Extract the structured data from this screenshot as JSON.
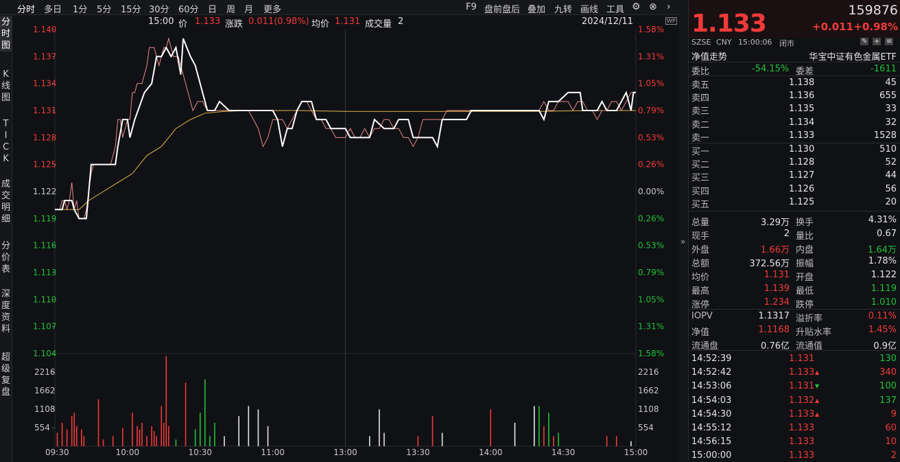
{
  "toolbar": {
    "periods": [
      "分时",
      "多日",
      "1分",
      "5分",
      "15分",
      "30分",
      "60分",
      "日",
      "周",
      "月",
      "更多"
    ],
    "right": [
      "F9",
      "盘前盘后",
      "叠加",
      "九转",
      "画线",
      "工具"
    ],
    "icons": [
      "gear-icon",
      "close-icon",
      "chevron-right-icon"
    ]
  },
  "left_tabs": [
    "分\n时\n图",
    "K\n线\n图",
    "T\nI\nC\nK",
    "成\n交\n明\n细",
    "分\n价\n表",
    "深\n度\n资\n料",
    "超\n级\n复\n盘"
  ],
  "infobar": {
    "time": "15:00",
    "price_label": "价",
    "price": "1.133",
    "change_label": "涨跌",
    "change": "0.011(0.98%)",
    "avg_label": "均价",
    "avg": "1.131",
    "vol_label": "成交量",
    "vol": "2",
    "date": "2024/12/11",
    "wp_label": "WP"
  },
  "chart_data": {
    "type": "line",
    "price_axis": {
      "ticks": [
        "1.140",
        "1.137",
        "1.134",
        "1.131",
        "1.128",
        "1.125",
        "1.122",
        "1.119",
        "1.116",
        "1.113",
        "1.110",
        "1.107",
        "1.104"
      ],
      "pct": [
        "1.58%",
        "1.31%",
        "1.05%",
        "0.79%",
        "0.53%",
        "0.26%",
        "0.00%",
        "0.26%",
        "0.53%",
        "0.79%",
        "1.05%",
        "1.31%",
        "1.58%"
      ],
      "pct_sign": [
        "up",
        "up",
        "up",
        "up",
        "up",
        "up",
        "zero",
        "down",
        "down",
        "down",
        "down",
        "down",
        "down"
      ],
      "ylim": [
        1.104,
        1.14
      ]
    },
    "volume_axis": {
      "ticks": [
        "2216",
        "1662",
        "1108",
        "554"
      ],
      "ylim": [
        0,
        2770
      ]
    },
    "time_ticks": [
      "09:30",
      "10:00",
      "10:30",
      "11:00",
      "13:00",
      "13:30",
      "14:00",
      "14:30",
      "15:00"
    ],
    "price_series": [
      [
        0,
        1.12
      ],
      [
        2,
        1.12
      ],
      [
        3,
        1.121
      ],
      [
        4,
        1.121
      ],
      [
        5,
        1.12
      ],
      [
        6,
        1.121
      ],
      [
        7,
        1.123
      ],
      [
        8,
        1.12
      ],
      [
        9,
        1.121
      ],
      [
        10,
        1.119
      ],
      [
        11,
        1.119
      ],
      [
        12,
        1.119
      ],
      [
        13,
        1.12
      ],
      [
        14,
        1.122
      ],
      [
        15,
        1.124
      ],
      [
        16,
        1.125
      ],
      [
        17,
        1.125
      ],
      [
        18,
        1.125
      ],
      [
        19,
        1.125
      ],
      [
        20,
        1.125
      ],
      [
        21,
        1.125
      ],
      [
        22,
        1.125
      ],
      [
        23,
        1.125
      ],
      [
        24,
        1.126
      ],
      [
        25,
        1.127
      ],
      [
        26,
        1.13
      ],
      [
        27,
        1.13
      ],
      [
        28,
        1.128
      ],
      [
        29,
        1.129
      ],
      [
        30,
        1.13
      ],
      [
        31,
        1.13
      ],
      [
        32,
        1.133
      ],
      [
        33,
        1.133
      ],
      [
        34,
        1.134
      ],
      [
        35,
        1.134
      ],
      [
        36,
        1.134
      ],
      [
        37,
        1.135
      ],
      [
        38,
        1.136
      ],
      [
        39,
        1.138
      ],
      [
        40,
        1.138
      ],
      [
        41,
        1.138
      ],
      [
        42,
        1.137
      ],
      [
        43,
        1.136
      ],
      [
        44,
        1.137
      ],
      [
        45,
        1.138
      ],
      [
        46,
        1.138
      ],
      [
        47,
        1.139
      ],
      [
        48,
        1.138
      ],
      [
        49,
        1.137
      ],
      [
        50,
        1.137
      ],
      [
        51,
        1.137
      ],
      [
        52,
        1.136
      ],
      [
        53,
        1.135
      ],
      [
        55,
        1.133
      ],
      [
        57,
        1.131
      ],
      [
        59,
        1.132
      ],
      [
        61,
        1.132
      ],
      [
        63,
        1.131
      ],
      [
        65,
        1.131
      ],
      [
        68,
        1.131
      ],
      [
        71,
        1.131
      ],
      [
        74,
        1.131
      ],
      [
        77,
        1.131
      ],
      [
        80,
        1.131
      ],
      [
        82,
        1.13
      ],
      [
        84,
        1.129
      ],
      [
        86,
        1.127
      ],
      [
        88,
        1.128
      ],
      [
        90,
        1.13
      ],
      [
        92,
        1.13
      ],
      [
        94,
        1.13
      ],
      [
        96,
        1.129
      ],
      [
        98,
        1.13
      ],
      [
        100,
        1.131
      ],
      [
        102,
        1.132
      ],
      [
        104,
        1.132
      ],
      [
        106,
        1.131
      ],
      [
        108,
        1.13
      ],
      [
        110,
        1.13
      ],
      [
        112,
        1.129
      ],
      [
        114,
        1.129
      ],
      [
        116,
        1.128
      ],
      [
        118,
        1.128
      ],
      [
        120,
        1.128
      ],
      [
        122,
        1.129
      ],
      [
        124,
        1.128
      ],
      [
        126,
        1.128
      ],
      [
        128,
        1.129
      ],
      [
        130,
        1.128
      ],
      [
        132,
        1.129
      ],
      [
        134,
        1.129
      ],
      [
        136,
        1.13
      ],
      [
        138,
        1.13
      ],
      [
        140,
        1.129
      ],
      [
        142,
        1.129
      ],
      [
        144,
        1.128
      ],
      [
        146,
        1.128
      ],
      [
        148,
        1.127
      ],
      [
        150,
        1.128
      ],
      [
        152,
        1.13
      ],
      [
        154,
        1.13
      ],
      [
        156,
        1.13
      ],
      [
        158,
        1.13
      ],
      [
        160,
        1.13
      ],
      [
        162,
        1.131
      ],
      [
        165,
        1.131
      ],
      [
        168,
        1.131
      ],
      [
        171,
        1.131
      ],
      [
        174,
        1.131
      ],
      [
        177,
        1.131
      ],
      [
        180,
        1.131
      ],
      [
        183,
        1.131
      ],
      [
        186,
        1.131
      ],
      [
        189,
        1.131
      ],
      [
        192,
        1.131
      ],
      [
        195,
        1.131
      ],
      [
        198,
        1.131
      ],
      [
        200,
        1.131
      ],
      [
        202,
        1.132
      ],
      [
        204,
        1.131
      ],
      [
        206,
        1.131
      ],
      [
        208,
        1.132
      ],
      [
        210,
        1.132
      ],
      [
        212,
        1.132
      ],
      [
        214,
        1.131
      ],
      [
        216,
        1.132
      ],
      [
        218,
        1.132
      ],
      [
        220,
        1.131
      ],
      [
        222,
        1.131
      ],
      [
        224,
        1.13
      ],
      [
        226,
        1.131
      ],
      [
        228,
        1.131
      ],
      [
        230,
        1.132
      ],
      [
        232,
        1.132
      ],
      [
        234,
        1.131
      ],
      [
        236,
        1.132
      ],
      [
        238,
        1.133
      ],
      [
        240,
        1.133
      ]
    ],
    "avg_series": [
      [
        0,
        1.12
      ],
      [
        5,
        1.12
      ],
      [
        10,
        1.12
      ],
      [
        14,
        1.121
      ],
      [
        20,
        1.122
      ],
      [
        26,
        1.123
      ],
      [
        32,
        1.124
      ],
      [
        38,
        1.126
      ],
      [
        44,
        1.127
      ],
      [
        50,
        1.129
      ],
      [
        56,
        1.13
      ],
      [
        62,
        1.1307
      ],
      [
        70,
        1.1309
      ],
      [
        80,
        1.131
      ],
      [
        100,
        1.131
      ],
      [
        120,
        1.1309
      ],
      [
        140,
        1.1309
      ],
      [
        160,
        1.1309
      ],
      [
        180,
        1.1309
      ],
      [
        200,
        1.1309
      ],
      [
        220,
        1.131
      ],
      [
        240,
        1.131
      ]
    ],
    "white_line": [
      [
        0,
        1.12
      ],
      [
        3,
        1.12
      ],
      [
        4,
        1.121
      ],
      [
        7,
        1.121
      ],
      [
        8,
        1.12
      ],
      [
        10,
        1.119
      ],
      [
        13,
        1.119
      ],
      [
        14,
        1.122
      ],
      [
        15,
        1.125
      ],
      [
        25,
        1.125
      ],
      [
        26,
        1.127
      ],
      [
        28,
        1.13
      ],
      [
        30,
        1.13
      ],
      [
        31,
        1.128
      ],
      [
        33,
        1.13
      ],
      [
        37,
        1.133
      ],
      [
        40,
        1.134
      ],
      [
        42,
        1.137
      ],
      [
        44,
        1.137
      ],
      [
        46,
        1.138
      ],
      [
        48,
        1.137
      ],
      [
        50,
        1.138
      ],
      [
        52,
        1.135
      ],
      [
        53,
        1.139
      ],
      [
        56,
        1.137
      ],
      [
        58,
        1.136
      ],
      [
        60,
        1.134
      ],
      [
        63,
        1.131
      ],
      [
        66,
        1.131
      ],
      [
        68,
        1.132
      ],
      [
        72,
        1.131
      ],
      [
        90,
        1.131
      ],
      [
        92,
        1.13
      ],
      [
        94,
        1.127
      ],
      [
        96,
        1.129
      ],
      [
        98,
        1.129
      ],
      [
        100,
        1.131
      ],
      [
        102,
        1.132
      ],
      [
        106,
        1.132
      ],
      [
        108,
        1.13
      ],
      [
        112,
        1.13
      ],
      [
        114,
        1.129
      ],
      [
        120,
        1.129
      ],
      [
        122,
        1.128
      ],
      [
        130,
        1.128
      ],
      [
        132,
        1.13
      ],
      [
        136,
        1.129
      ],
      [
        140,
        1.129
      ],
      [
        142,
        1.13
      ],
      [
        146,
        1.13
      ],
      [
        148,
        1.128
      ],
      [
        156,
        1.128
      ],
      [
        158,
        1.127
      ],
      [
        160,
        1.13
      ],
      [
        162,
        1.13
      ],
      [
        166,
        1.13
      ],
      [
        170,
        1.13
      ],
      [
        172,
        1.131
      ],
      [
        200,
        1.131
      ],
      [
        202,
        1.13
      ],
      [
        204,
        1.132
      ],
      [
        208,
        1.132
      ],
      [
        212,
        1.133
      ],
      [
        217,
        1.133
      ],
      [
        218,
        1.131
      ],
      [
        224,
        1.131
      ],
      [
        226,
        1.132
      ],
      [
        228,
        1.131
      ],
      [
        232,
        1.131
      ],
      [
        234,
        1.132
      ],
      [
        236,
        1.133
      ],
      [
        238,
        1.131
      ],
      [
        239,
        1.133
      ],
      [
        240,
        1.133
      ]
    ],
    "volume": [
      [
        1,
        400,
        "r"
      ],
      [
        3,
        700,
        "r"
      ],
      [
        5,
        500,
        "r"
      ],
      [
        7,
        900,
        "r"
      ],
      [
        8,
        1000,
        "r"
      ],
      [
        9,
        600,
        "r"
      ],
      [
        11,
        500,
        "r"
      ],
      [
        12,
        300,
        "r"
      ],
      [
        18,
        1400,
        "r"
      ],
      [
        20,
        200,
        "r"
      ],
      [
        24,
        300,
        "r"
      ],
      [
        28,
        550,
        "r"
      ],
      [
        32,
        1000,
        "r"
      ],
      [
        34,
        600,
        "r"
      ],
      [
        35,
        500,
        "r"
      ],
      [
        36,
        700,
        "r"
      ],
      [
        38,
        300,
        "r"
      ],
      [
        40,
        600,
        "r"
      ],
      [
        41,
        450,
        "r"
      ],
      [
        42,
        300,
        "r"
      ],
      [
        44,
        1200,
        "r"
      ],
      [
        45,
        700,
        "r"
      ],
      [
        46,
        2700,
        "r"
      ],
      [
        47,
        600,
        "r"
      ],
      [
        50,
        200,
        "g"
      ],
      [
        54,
        1900,
        "r"
      ],
      [
        58,
        500,
        "g"
      ],
      [
        60,
        1000,
        "g"
      ],
      [
        62,
        2000,
        "g"
      ],
      [
        64,
        300,
        "g"
      ],
      [
        66,
        700,
        "g"
      ],
      [
        70,
        300,
        "w"
      ],
      [
        76,
        900,
        "w"
      ],
      [
        80,
        1200,
        "w"
      ],
      [
        84,
        1100,
        "w"
      ],
      [
        88,
        600,
        "w"
      ],
      [
        130,
        300,
        "w"
      ],
      [
        134,
        1100,
        "w"
      ],
      [
        136,
        400,
        "w"
      ],
      [
        150,
        300,
        "r"
      ],
      [
        156,
        900,
        "r"
      ],
      [
        160,
        400,
        "w"
      ],
      [
        180,
        1100,
        "r"
      ],
      [
        190,
        700,
        "w"
      ],
      [
        198,
        1200,
        "w"
      ],
      [
        200,
        1200,
        "g"
      ],
      [
        202,
        600,
        "r"
      ],
      [
        204,
        1000,
        "g"
      ],
      [
        206,
        300,
        "r"
      ],
      [
        208,
        400,
        "g"
      ],
      [
        228,
        300,
        "r"
      ],
      [
        232,
        300,
        "r"
      ],
      [
        238,
        150,
        "w"
      ]
    ]
  },
  "quote": {
    "price": "1.133",
    "code": "159876",
    "change": "+0.011",
    "change_pct": "+0.98%",
    "market": "SZSE",
    "currency": "CNY",
    "time": "15:00:06",
    "status": "闭市",
    "nav_trend_label": "净值走势",
    "name": "华宝中证有色金属ETF",
    "icons": [
      "edit-icon",
      "add-icon",
      "list-icon"
    ]
  },
  "orderbook": {
    "wei_bi_label": "委比",
    "wei_bi": "-54.15%",
    "wei_cha_label": "委差",
    "wei_cha": "-1611",
    "asks": [
      {
        "label": "卖五",
        "price": "1.138",
        "vol": "45"
      },
      {
        "label": "卖四",
        "price": "1.136",
        "vol": "655"
      },
      {
        "label": "卖三",
        "price": "1.135",
        "vol": "33"
      },
      {
        "label": "卖二",
        "price": "1.134",
        "vol": "32"
      },
      {
        "label": "卖一",
        "price": "1.133",
        "vol": "1528"
      }
    ],
    "bids": [
      {
        "label": "买一",
        "price": "1.130",
        "vol": "510"
      },
      {
        "label": "买二",
        "price": "1.128",
        "vol": "52"
      },
      {
        "label": "买三",
        "price": "1.127",
        "vol": "44"
      },
      {
        "label": "买四",
        "price": "1.126",
        "vol": "56"
      },
      {
        "label": "买五",
        "price": "1.125",
        "vol": "20"
      }
    ]
  },
  "stats": [
    {
      "l1": "总量",
      "v1": "3.29万",
      "c1": "white",
      "l2": "换手",
      "v2": "4.31%",
      "c2": "white"
    },
    {
      "l1": "现手",
      "v1": "2",
      "c1": "white",
      "l2": "量比",
      "v2": "0.67",
      "c2": "white"
    },
    {
      "l1": "外盘",
      "v1": "1.66万",
      "c1": "red",
      "l2": "内盘",
      "v2": "1.64万",
      "c2": "green"
    },
    {
      "l1": "总额",
      "v1": "372.56万",
      "c1": "white",
      "l2": "振幅",
      "v2": "1.78%",
      "c2": "white"
    },
    {
      "l1": "均价",
      "v1": "1.131",
      "c1": "red",
      "l2": "开盘",
      "v2": "1.122",
      "c2": "white"
    },
    {
      "l1": "最高",
      "v1": "1.139",
      "c1": "red",
      "l2": "最低",
      "v2": "1.119",
      "c2": "green"
    },
    {
      "l1": "涨停",
      "v1": "1.234",
      "c1": "red",
      "l2": "跌停",
      "v2": "1.010",
      "c2": "green"
    }
  ],
  "fund": [
    {
      "l1": "IOPV",
      "v1": "1.1317",
      "c1": "white",
      "l2": "溢折率",
      "v2": "0.11%",
      "c2": "red"
    },
    {
      "l1": "净值",
      "v1": "1.1168",
      "c1": "red",
      "l2": "升贴水率",
      "v2": "1.45%",
      "c2": "red"
    },
    {
      "l1": "流通盘",
      "v1": "0.76亿",
      "c1": "white",
      "l2": "流通值",
      "v2": "0.9亿",
      "c2": "white"
    }
  ],
  "ticks": [
    {
      "time": "14:52:39",
      "price": "1.131",
      "arrow": "",
      "vol": "130",
      "vc": "green"
    },
    {
      "time": "14:52:42",
      "price": "1.133",
      "arrow": "up",
      "vol": "340",
      "vc": "red"
    },
    {
      "time": "14:53:06",
      "price": "1.131",
      "arrow": "down",
      "vol": "100",
      "vc": "green"
    },
    {
      "time": "14:54:03",
      "price": "1.132",
      "arrow": "up",
      "vol": "137",
      "vc": "green"
    },
    {
      "time": "14:54:30",
      "price": "1.133",
      "arrow": "up",
      "vol": "9",
      "vc": "red"
    },
    {
      "time": "14:55:12",
      "price": "1.133",
      "arrow": "",
      "vol": "60",
      "vc": "red"
    },
    {
      "time": "14:56:15",
      "price": "1.133",
      "arrow": "",
      "vol": "10",
      "vc": "red"
    },
    {
      "time": "15:00:00",
      "price": "1.133",
      "arrow": "",
      "vol": "2",
      "vc": "red"
    }
  ],
  "colors": {
    "up": "#f23a3a",
    "down": "#22c03a",
    "avg_line": "#e8b84a",
    "price_line": "#ffffff",
    "grid": "#2a2b30"
  }
}
